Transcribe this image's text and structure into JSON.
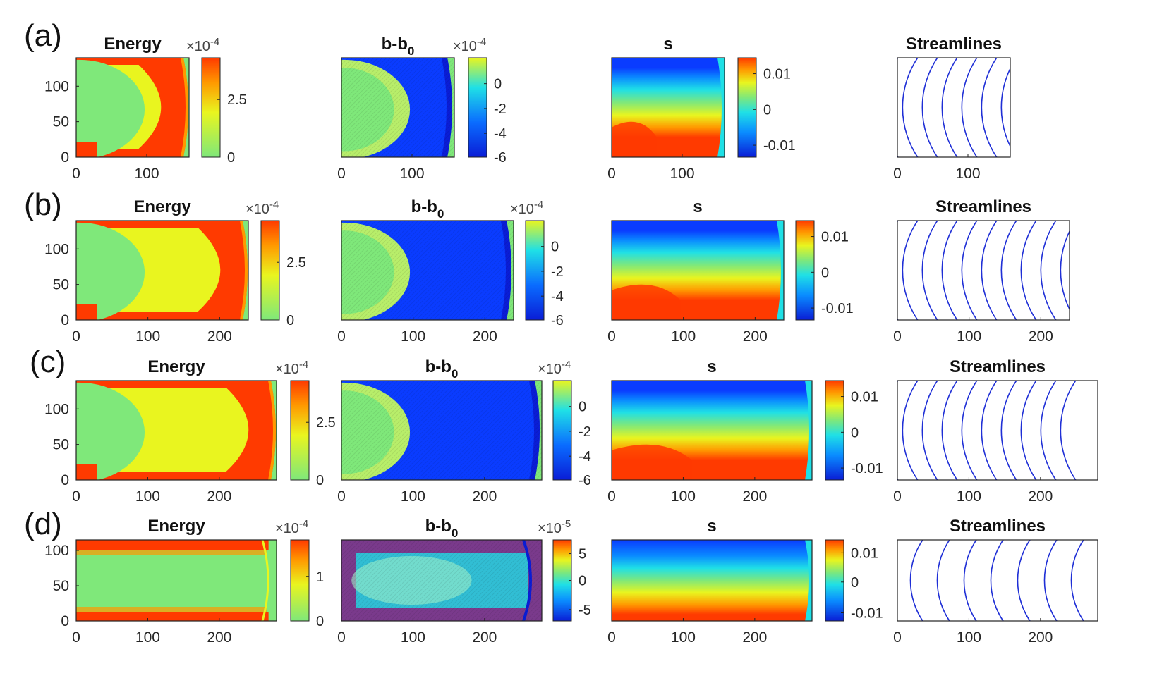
{
  "colors": {
    "red": "#ff3a00",
    "orange": "#ff9900",
    "yellow": "#e9f51f",
    "green": "#7fe87a",
    "cyan": "#1fe0e6",
    "blue": "#0a3cff",
    "darkblue": "#0a1dd6",
    "purple": "#7a3a8c",
    "stream": "#1f2fd6"
  },
  "chart_data": [
    {
      "row": "(a)",
      "type": "heatmap",
      "xlim": [
        0,
        160
      ],
      "ylim": [
        0,
        140
      ],
      "xticks": [
        "0",
        "100"
      ],
      "yticks": [
        "0",
        "50",
        "100"
      ],
      "panels": [
        {
          "title": "Energy",
          "kind": "energy",
          "subscript": "",
          "scale_base": "×10",
          "scale_exp": "-4",
          "cbar_ticks": [
            "2.5",
            "0"
          ]
        },
        {
          "title": "b-b",
          "kind": "bdiff",
          "subscript": "0",
          "scale_base": "×10",
          "scale_exp": "-4",
          "cbar_ticks": [
            "0",
            "-2",
            "-4",
            "-6"
          ]
        },
        {
          "title": "s",
          "kind": "s",
          "subscript": "",
          "scale_base": "",
          "scale_exp": "",
          "cbar_ticks": [
            "0.01",
            "0",
            "-0.01"
          ]
        },
        {
          "title": "Streamlines",
          "kind": "stream",
          "subscript": "",
          "scale_base": "",
          "scale_exp": "",
          "cbar_ticks": []
        }
      ]
    },
    {
      "row": "(b)",
      "type": "heatmap",
      "xlim": [
        0,
        240
      ],
      "ylim": [
        0,
        140
      ],
      "xticks": [
        "0",
        "100",
        "200"
      ],
      "yticks": [
        "0",
        "50",
        "100"
      ],
      "panels": [
        {
          "title": "Energy",
          "kind": "energy",
          "subscript": "",
          "scale_base": "×10",
          "scale_exp": "-4",
          "cbar_ticks": [
            "2.5",
            "0"
          ]
        },
        {
          "title": "b-b",
          "kind": "bdiff",
          "subscript": "0",
          "scale_base": "×10",
          "scale_exp": "-4",
          "cbar_ticks": [
            "0",
            "-2",
            "-4",
            "-6"
          ]
        },
        {
          "title": "s",
          "kind": "s",
          "subscript": "",
          "scale_base": "",
          "scale_exp": "",
          "cbar_ticks": [
            "0.01",
            "0",
            "-0.01"
          ]
        },
        {
          "title": "Streamlines",
          "kind": "stream",
          "subscript": "",
          "scale_base": "",
          "scale_exp": "",
          "cbar_ticks": []
        }
      ]
    },
    {
      "row": "(c)",
      "type": "heatmap",
      "xlim": [
        0,
        280
      ],
      "ylim": [
        0,
        140
      ],
      "xticks": [
        "0",
        "100",
        "200"
      ],
      "yticks": [
        "0",
        "50",
        "100"
      ],
      "panels": [
        {
          "title": "Energy",
          "kind": "energy",
          "subscript": "",
          "scale_base": "×10",
          "scale_exp": "-4",
          "cbar_ticks": [
            "2.5",
            "0"
          ]
        },
        {
          "title": "b-b",
          "kind": "bdiff",
          "subscript": "0",
          "scale_base": "×10",
          "scale_exp": "-4",
          "cbar_ticks": [
            "0",
            "-2",
            "-4",
            "-6"
          ]
        },
        {
          "title": "s",
          "kind": "s",
          "subscript": "",
          "scale_base": "",
          "scale_exp": "",
          "cbar_ticks": [
            "0.01",
            "0",
            "-0.01"
          ]
        },
        {
          "title": "Streamlines",
          "kind": "stream",
          "subscript": "",
          "scale_base": "",
          "scale_exp": "",
          "cbar_ticks": []
        }
      ]
    },
    {
      "row": "(d)",
      "type": "heatmap",
      "xlim": [
        0,
        280
      ],
      "ylim": [
        0,
        115
      ],
      "xticks": [
        "0",
        "100",
        "200"
      ],
      "yticks": [
        "0",
        "50",
        "100"
      ],
      "panels": [
        {
          "title": "Energy",
          "kind": "energy-d",
          "subscript": "",
          "scale_base": "×10",
          "scale_exp": "-4",
          "cbar_ticks": [
            "1",
            "0"
          ]
        },
        {
          "title": "b-b",
          "kind": "bdiff-d",
          "subscript": "0",
          "scale_base": "×10",
          "scale_exp": "-5",
          "cbar_ticks": [
            "5",
            "0",
            "-5"
          ]
        },
        {
          "title": "s",
          "kind": "s-d",
          "subscript": "",
          "scale_base": "",
          "scale_exp": "",
          "cbar_ticks": [
            "0.01",
            "0",
            "-0.01"
          ]
        },
        {
          "title": "Streamlines",
          "kind": "stream-d",
          "subscript": "",
          "scale_base": "",
          "scale_exp": "",
          "cbar_ticks": []
        }
      ]
    }
  ]
}
